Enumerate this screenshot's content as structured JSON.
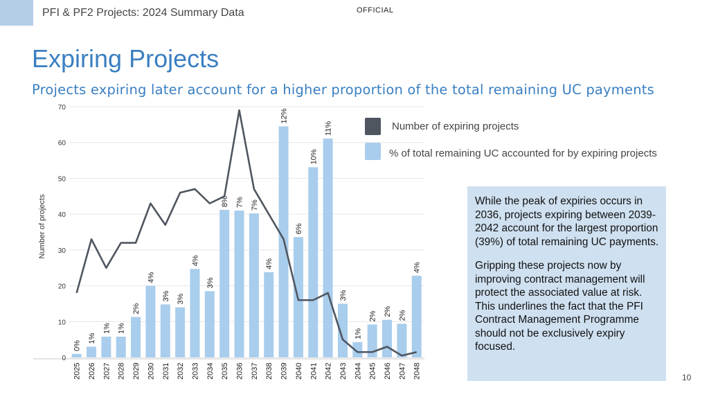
{
  "header": {
    "title": "PFI & PF2 Projects: 2024 Summary Data",
    "classification": "OFFICIAL"
  },
  "slide": {
    "title": "Expiring Projects",
    "subtitle": "Projects expiring later account for a higher proportion of the total remaining UC payments",
    "page_number": "10"
  },
  "callout": {
    "paragraph1": "While the peak of expiries occurs in 2036, projects expiring between 2039-2042 account for the largest proportion (39%) of total remaining UC payments.",
    "paragraph2": "Gripping these projects now by improving contract management will protect the associated value at risk. This underlines the fact that the PFI Contract Management Programme should not be exclusively expiry focused."
  },
  "legend": {
    "line_label": "Number of expiring projects",
    "bar_label": "% of  total remaining UC accounted for by expiring projects"
  },
  "chart_data": {
    "type": "bar",
    "title": "",
    "xlabel": "",
    "ylabel": "Number of projects",
    "ylim": [
      0,
      70
    ],
    "yticks": [
      0,
      10,
      20,
      30,
      40,
      50,
      60,
      70
    ],
    "categories": [
      "2025",
      "2026",
      "2027",
      "2028",
      "2029",
      "2030",
      "2031",
      "2032",
      "2033",
      "2034",
      "2035",
      "2036",
      "2037",
      "2038",
      "2039",
      "2040",
      "2041",
      "2042",
      "2043",
      "2044",
      "2045",
      "2046",
      "2047",
      "2048"
    ],
    "series": [
      {
        "name": "% of  total remaining UC accounted for by expiring projects",
        "type": "bar",
        "color": "#a9cdec",
        "values": [
          1,
          3,
          5.8,
          5.8,
          11.3,
          20,
          14.8,
          14,
          24.7,
          18.5,
          41.2,
          41,
          40.2,
          23.8,
          64.5,
          33.6,
          53.1,
          61.1,
          15,
          4.3,
          9.2,
          10.5,
          9.4,
          22.8
        ],
        "labels": [
          "0%",
          "1%",
          "1%",
          "1%",
          "2%",
          "4%",
          "3%",
          "3%",
          "4%",
          "3%",
          "8%",
          "7%",
          "7%",
          "4%",
          "12%",
          "6%",
          "10%",
          "11%",
          "3%",
          "1%",
          "2%",
          "2%",
          "2%",
          "4%"
        ]
      },
      {
        "name": "Number of expiring projects",
        "type": "line",
        "color": "#4f5660",
        "values": [
          18,
          33,
          25,
          32,
          32,
          43,
          37,
          46,
          47,
          43,
          45,
          69,
          47,
          40,
          33,
          16,
          16,
          18,
          5,
          1.5,
          1.5,
          3,
          0.5,
          1.5
        ]
      }
    ]
  }
}
